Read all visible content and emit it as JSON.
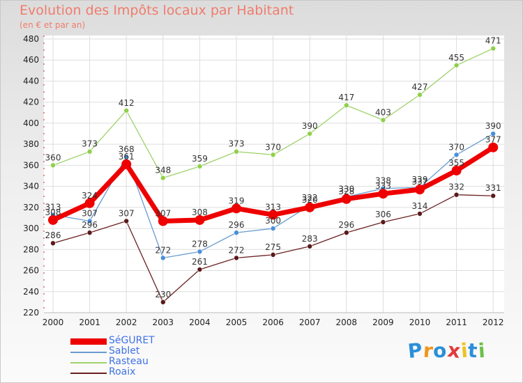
{
  "header": {
    "title": "Evolution des Impôts locaux par Habitant",
    "subtitle": "(en € et par an)"
  },
  "brand": {
    "letters": [
      "P",
      "r",
      "o",
      "x",
      "i",
      "t",
      "i"
    ],
    "colors": [
      "#2b8fd9",
      "#f0961e",
      "#2b8fd9",
      "#e23b3b",
      "#f0c21e",
      "#2b8fd9",
      "#6cc04a"
    ]
  },
  "chart_data": {
    "type": "line",
    "title": "Evolution des Impôts locaux par Habitant",
    "subtitle": "(en € et par an)",
    "xlabel": "",
    "ylabel": "",
    "x": [
      "2000",
      "2001",
      "2002",
      "2003",
      "2004",
      "2005",
      "2006",
      "2007",
      "2008",
      "2009",
      "2010",
      "2011",
      "2012"
    ],
    "ylim": [
      220,
      480
    ],
    "yticks": [
      220,
      240,
      260,
      280,
      300,
      320,
      340,
      360,
      380,
      400,
      420,
      440,
      460,
      480
    ],
    "grid": true,
    "legend_position": "bottom-left",
    "series": [
      {
        "name": "SéGURET",
        "color": "#ee0000",
        "values": [
          308,
          324,
          361,
          307,
          308,
          319,
          313,
          320,
          328,
          333,
          337,
          355,
          377
        ]
      },
      {
        "name": "Sablet",
        "color": "#6a9ccf",
        "values": [
          313,
          307,
          368,
          272,
          278,
          296,
          300,
          322,
          330,
          338,
          339,
          370,
          390
        ]
      },
      {
        "name": "Rasteau",
        "color": "#9ed26a",
        "values": [
          360,
          373,
          412,
          348,
          359,
          373,
          370,
          390,
          417,
          403,
          427,
          455,
          471
        ]
      },
      {
        "name": "Roaix",
        "color": "#6b2020",
        "values": [
          286,
          296,
          307,
          230,
          261,
          272,
          275,
          283,
          296,
          306,
          314,
          332,
          331
        ]
      }
    ]
  }
}
